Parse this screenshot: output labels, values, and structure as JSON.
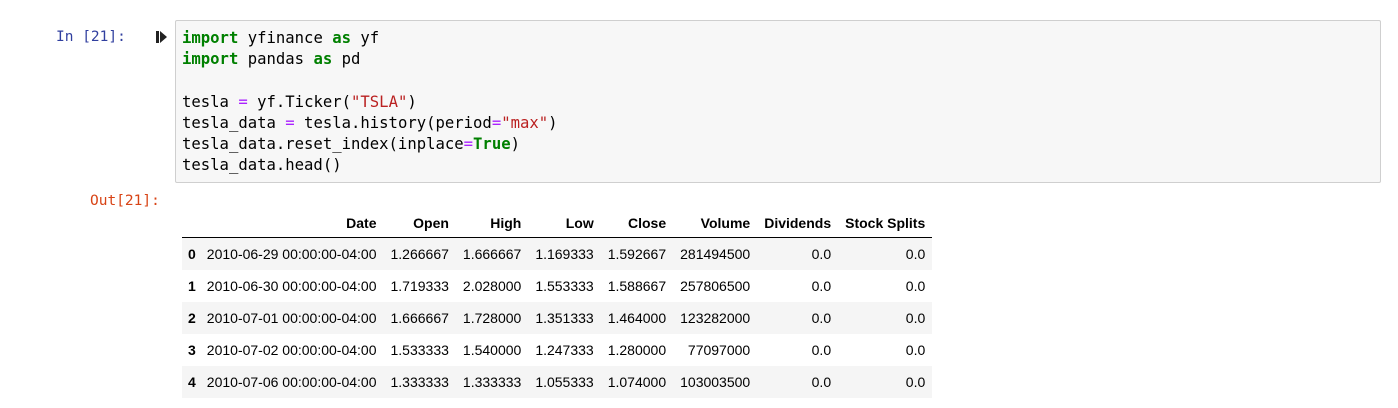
{
  "cell": {
    "in_prompt": "In [21]:",
    "out_prompt": "Out[21]:",
    "code_lines": [
      [
        {
          "t": "import",
          "c": "kw"
        },
        {
          "t": " yfinance "
        },
        {
          "t": "as",
          "c": "kw"
        },
        {
          "t": " yf"
        }
      ],
      [
        {
          "t": "import",
          "c": "kw"
        },
        {
          "t": " pandas "
        },
        {
          "t": "as",
          "c": "kw"
        },
        {
          "t": " pd"
        }
      ],
      [],
      [
        {
          "t": "tesla "
        },
        {
          "t": "=",
          "c": "op"
        },
        {
          "t": " yf.Ticker("
        },
        {
          "t": "\"TSLA\"",
          "c": "str"
        },
        {
          "t": ")"
        }
      ],
      [
        {
          "t": "tesla_data "
        },
        {
          "t": "=",
          "c": "op"
        },
        {
          "t": " tesla.history(period"
        },
        {
          "t": "=",
          "c": "op"
        },
        {
          "t": "\"max\"",
          "c": "str"
        },
        {
          "t": ")"
        }
      ],
      [
        {
          "t": "tesla_data.reset_index(inplace"
        },
        {
          "t": "=",
          "c": "op"
        },
        {
          "t": "True",
          "c": "bool"
        },
        {
          "t": ")"
        }
      ],
      [
        {
          "t": "tesla_data.head()"
        }
      ]
    ]
  },
  "table": {
    "columns": [
      "",
      "Date",
      "Open",
      "High",
      "Low",
      "Close",
      "Volume",
      "Dividends",
      "Stock Splits"
    ],
    "rows": [
      {
        "index": "0",
        "cells": [
          "2010-06-29 00:00:00-04:00",
          "1.266667",
          "1.666667",
          "1.169333",
          "1.592667",
          "281494500",
          "0.0",
          "0.0"
        ]
      },
      {
        "index": "1",
        "cells": [
          "2010-06-30 00:00:00-04:00",
          "1.719333",
          "2.028000",
          "1.553333",
          "1.588667",
          "257806500",
          "0.0",
          "0.0"
        ]
      },
      {
        "index": "2",
        "cells": [
          "2010-07-01 00:00:00-04:00",
          "1.666667",
          "1.728000",
          "1.351333",
          "1.464000",
          "123282000",
          "0.0",
          "0.0"
        ]
      },
      {
        "index": "3",
        "cells": [
          "2010-07-02 00:00:00-04:00",
          "1.533333",
          "1.540000",
          "1.247333",
          "1.280000",
          "77097000",
          "0.0",
          "0.0"
        ]
      },
      {
        "index": "4",
        "cells": [
          "2010-07-06 00:00:00-04:00",
          "1.333333",
          "1.333333",
          "1.055333",
          "1.074000",
          "103003500",
          "0.0",
          "0.0"
        ]
      }
    ]
  },
  "icons": {
    "run": "step-forward-icon"
  },
  "colors": {
    "in_prompt": "#303f9f",
    "out_prompt": "#d84315",
    "keyword": "#008000",
    "string": "#ba2121",
    "operator": "#aa22ff"
  }
}
